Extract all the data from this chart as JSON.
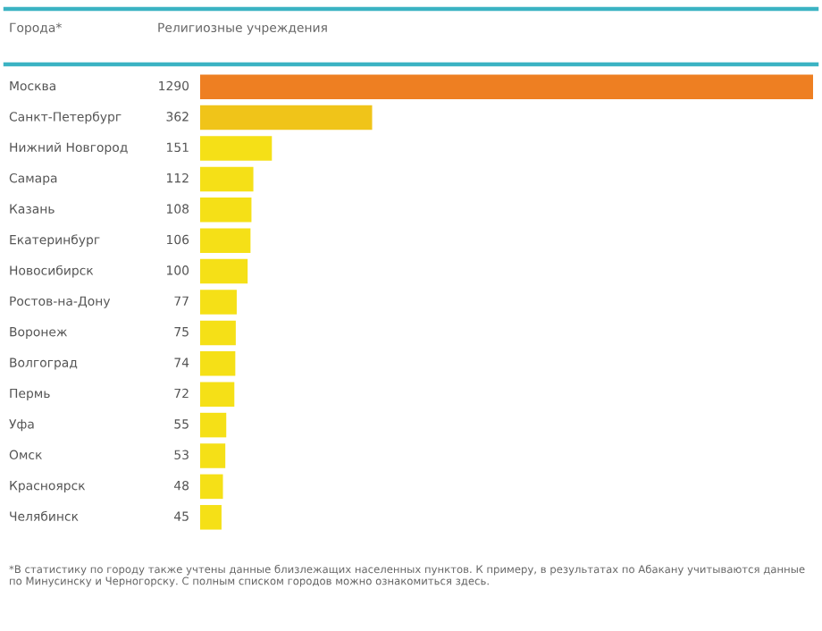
{
  "chart_data": {
    "type": "bar",
    "orientation": "horizontal",
    "ylabel": "Города*",
    "xlabel": "Религиозные учреждения",
    "categories": [
      "Москва",
      "Санкт-Петербург",
      "Нижний Новгород",
      "Самара",
      "Казань",
      "Екатеринбург",
      "Новосибирск",
      "Ростов-на-Дону",
      "Воронеж",
      "Волгоград",
      "Пермь",
      "Уфа",
      "Омск",
      "Красноярск",
      "Челябинск"
    ],
    "values": [
      1290,
      362,
      151,
      112,
      108,
      106,
      100,
      77,
      75,
      74,
      72,
      55,
      53,
      48,
      45
    ],
    "colors": [
      "#ee7f22",
      "#f0c419",
      "#f5e017",
      "#f5e017",
      "#f5e017",
      "#f5e017",
      "#f5e017",
      "#f5e017",
      "#f5e017",
      "#f5e017",
      "#f5e017",
      "#f5e017",
      "#f5e017",
      "#f5e017",
      "#f5e017"
    ],
    "data_labels": true,
    "annotations": [
      "*В статистику по городу также учтены данные близлежащих населенных пунктов. К примеру, в результатах по Абакану учитываются данные по Минусинску и Черногорску. С полным списком городов можно ознакомиться здесь."
    ]
  }
}
